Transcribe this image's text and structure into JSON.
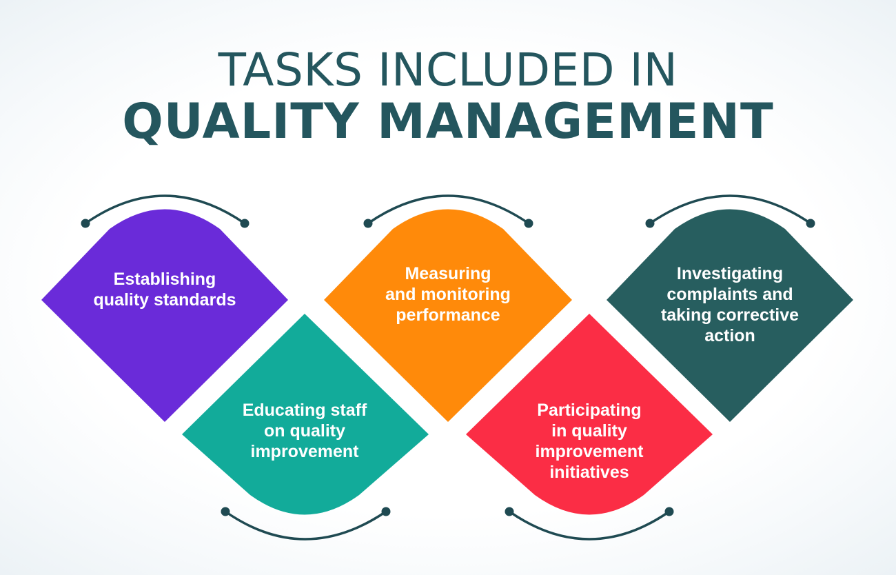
{
  "title": {
    "line1": "TASKS INCLUDED IN",
    "line2": "QUALITY MANAGEMENT"
  },
  "colors": {
    "title": "#24565e",
    "connector": "#1f4a52",
    "purple": "#6a2bd9",
    "teal": "#12ab9a",
    "orange": "#ff8a0a",
    "red": "#fb2d45",
    "dark_green": "#275e5f"
  },
  "tasks": [
    {
      "id": "establishing",
      "text": "Establishing\nquality standards",
      "color": "#6a2bd9"
    },
    {
      "id": "educating",
      "text": "Educating staff\non quality\nimprovement",
      "color": "#12ab9a"
    },
    {
      "id": "measuring",
      "text": "Measuring\nand monitoring\nperformance",
      "color": "#ff8a0a"
    },
    {
      "id": "participating",
      "text": "Participating\nin quality\nimprovement\ninitiatives",
      "color": "#fb2d45"
    },
    {
      "id": "investigating",
      "text": "Investigating\ncomplaints and\ntaking corrective\naction",
      "color": "#275e5f"
    }
  ]
}
